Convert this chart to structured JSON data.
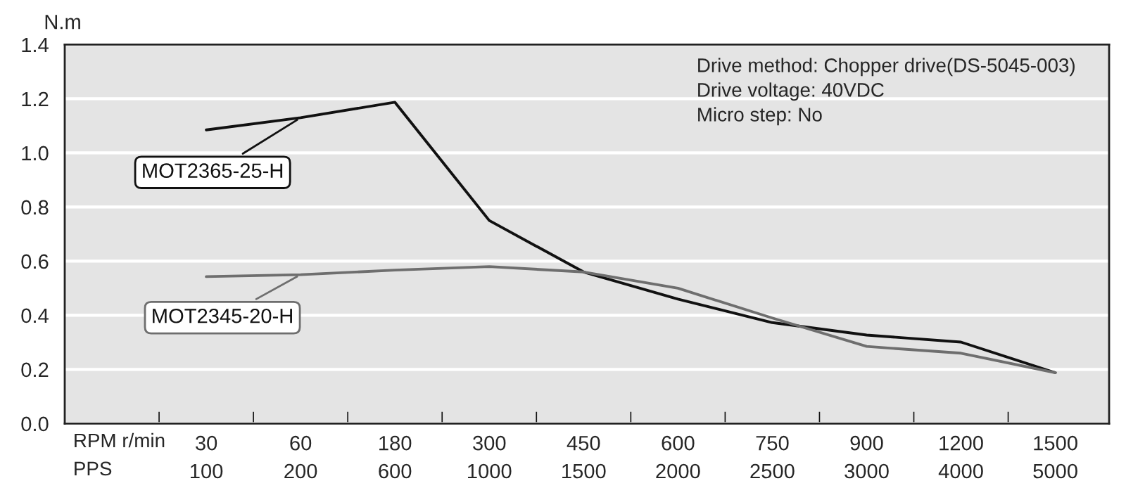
{
  "chart_data": {
    "type": "line",
    "ylabel": "N.m",
    "xlabel": "RPM r/min\nPPS",
    "categories": [
      "30\n100",
      "60\n200",
      "180\n600",
      "300\n1000",
      "450\n1500",
      "600\n2000",
      "750\n2500",
      "900\n3000",
      "1200\n4000",
      "1500\n5000"
    ],
    "series": [
      {
        "name": "MOT2365-25-H",
        "color": "#111111",
        "values": [
          1.085,
          1.13,
          1.187,
          0.75,
          0.56,
          0.46,
          0.373,
          0.327,
          0.301,
          0.188
        ]
      },
      {
        "name": "MOT2345-20-H",
        "color": "#6e6e6e",
        "values": [
          0.543,
          0.55,
          0.567,
          0.58,
          0.56,
          0.5,
          0.39,
          0.285,
          0.26,
          0.188
        ]
      }
    ],
    "ylim": [
      0,
      1.4
    ],
    "yticks": [
      {
        "value": 0,
        "label": "0.0"
      },
      0.2,
      0.4,
      0.6,
      0.8,
      {
        "value": 1,
        "label": "1.0"
      },
      1.2,
      1.4
    ],
    "grid": "y",
    "legend": "left",
    "marker": "none",
    "line_style": "solid",
    "annotations": [
      "Drive method: Chopper drive(DS-5045-003)",
      "Drive voltage: 40VDC",
      "Micro step: No"
    ]
  }
}
